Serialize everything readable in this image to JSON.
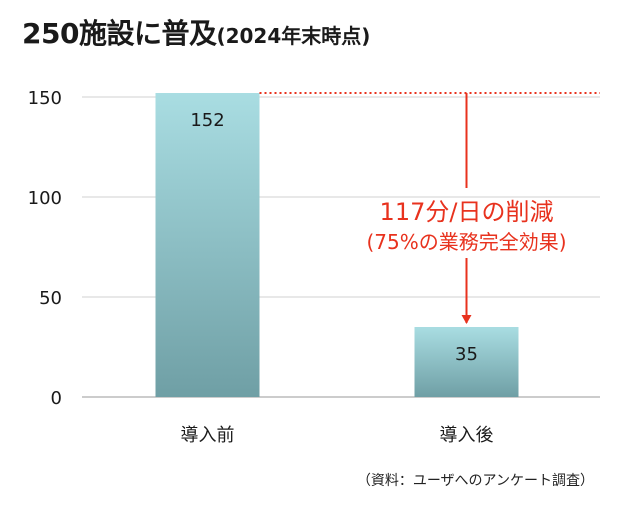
{
  "title": {
    "main": "250施設に普及",
    "sub": "(2024年末時点)"
  },
  "chart_data": {
    "type": "bar",
    "categories": [
      "導入前",
      "導入後"
    ],
    "values": [
      152,
      35
    ],
    "data_labels": [
      "152",
      "35"
    ],
    "ylim": [
      0,
      150
    ],
    "yticks": [
      0,
      50,
      100,
      150
    ],
    "grid": true,
    "reference_line": {
      "value": 152,
      "style": "dotted",
      "color": "#e8321e"
    },
    "annotation": {
      "line1": "117分/日の削減",
      "line2": "(75%の業務完全効果)",
      "color": "#e8321e"
    },
    "colors": {
      "bar_top": "#a9dde2",
      "bar_bottom": "#6f9fa5",
      "grid": "#d0d0d0",
      "axis": "#9a9a9a"
    }
  },
  "source_note": "（資料：ユーザへのアンケート調査）"
}
